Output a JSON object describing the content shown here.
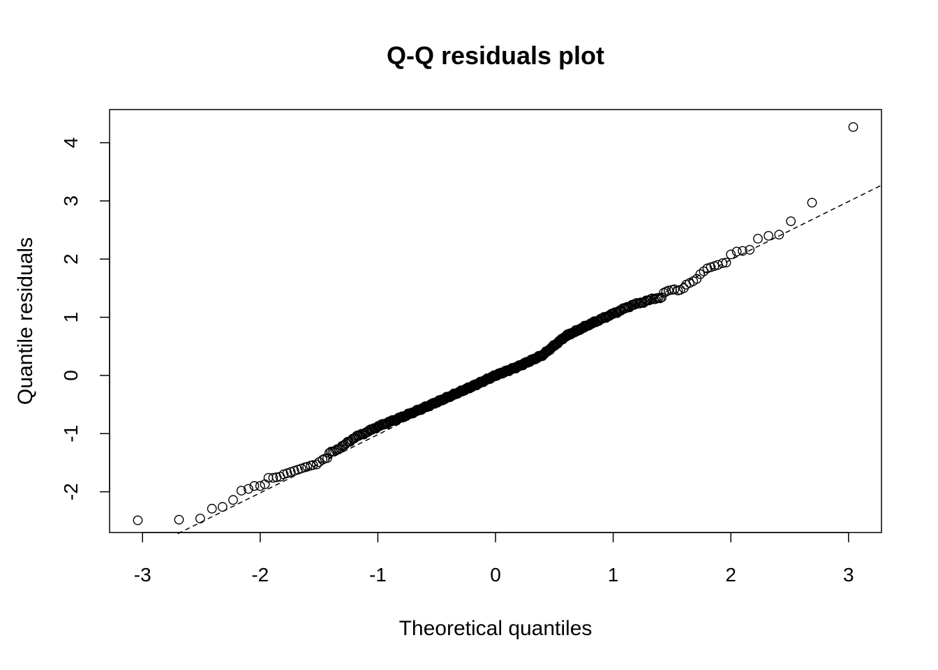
{
  "chart_data": {
    "type": "scatter",
    "title": "Q-Q residuals plot",
    "xlabel": "Theoretical quantiles",
    "ylabel": "Quantile residuals",
    "xlim": [
      -3.28,
      3.28
    ],
    "ylim": [
      -2.7,
      4.57
    ],
    "x_ticks": [
      -3,
      -2,
      -1,
      0,
      1,
      2,
      3
    ],
    "x_tick_labels": [
      "-3",
      "-2",
      "-1",
      "0",
      "1",
      "2",
      "3"
    ],
    "y_ticks": [
      -2,
      -1,
      0,
      1,
      2,
      3,
      4
    ],
    "y_tick_labels": [
      "-2",
      "-1",
      "0",
      "1",
      "2",
      "3",
      "4"
    ],
    "grid": false,
    "legend": "none",
    "marker": "open-circle",
    "reference_line": {
      "style": "dashed",
      "points": [
        [
          -2.7,
          -2.72
        ],
        [
          3.28,
          3.27
        ]
      ]
    },
    "tail_points": [
      [
        -3.04,
        -2.49
      ],
      [
        -2.69,
        -2.48
      ],
      [
        -2.51,
        -2.46
      ],
      [
        -2.41,
        -2.29
      ],
      [
        -2.32,
        -2.26
      ],
      [
        -2.23,
        -2.14
      ],
      [
        -2.16,
        -1.98
      ],
      [
        -2.1,
        -1.95
      ],
      [
        -2.05,
        -1.9
      ],
      [
        -2.0,
        -1.9
      ],
      [
        -1.96,
        -1.87
      ],
      [
        -1.93,
        -1.76
      ],
      [
        -1.89,
        -1.76
      ],
      [
        -1.86,
        -1.75
      ],
      [
        -1.83,
        -1.74
      ],
      [
        -1.8,
        -1.7
      ],
      [
        -1.77,
        -1.68
      ],
      [
        -1.74,
        -1.66
      ],
      [
        -1.71,
        -1.64
      ],
      [
        -1.68,
        -1.62
      ],
      [
        -1.65,
        -1.6
      ],
      [
        -1.62,
        -1.58
      ],
      [
        -1.6,
        -1.57
      ],
      [
        -1.57,
        -1.55
      ],
      [
        -1.55,
        -1.54
      ],
      [
        -1.52,
        -1.53
      ],
      [
        -1.5,
        -1.49
      ],
      [
        -1.47,
        -1.45
      ],
      [
        -1.45,
        -1.43
      ],
      [
        -1.43,
        -1.42
      ],
      [
        1.43,
        1.42
      ],
      [
        1.45,
        1.44
      ],
      [
        1.47,
        1.46
      ],
      [
        1.5,
        1.47
      ],
      [
        1.52,
        1.48
      ],
      [
        1.55,
        1.46
      ],
      [
        1.57,
        1.47
      ],
      [
        1.6,
        1.5
      ],
      [
        1.62,
        1.56
      ],
      [
        1.65,
        1.59
      ],
      [
        1.68,
        1.62
      ],
      [
        1.71,
        1.66
      ],
      [
        1.74,
        1.74
      ],
      [
        1.77,
        1.79
      ],
      [
        1.8,
        1.84
      ],
      [
        1.83,
        1.86
      ],
      [
        1.86,
        1.88
      ],
      [
        1.89,
        1.9
      ],
      [
        1.93,
        1.93
      ],
      [
        1.96,
        1.94
      ],
      [
        2.0,
        2.08
      ],
      [
        2.05,
        2.13
      ],
      [
        2.1,
        2.14
      ],
      [
        2.16,
        2.16
      ],
      [
        2.23,
        2.35
      ],
      [
        2.32,
        2.4
      ],
      [
        2.41,
        2.42
      ],
      [
        2.51,
        2.65
      ],
      [
        2.69,
        2.97
      ],
      [
        3.04,
        4.27
      ]
    ],
    "central_curve": [
      [
        -1.42,
        -1.35
      ],
      [
        -1.3,
        -1.22
      ],
      [
        -1.2,
        -1.07
      ],
      [
        -1.1,
        -0.98
      ],
      [
        -1.0,
        -0.88
      ],
      [
        -0.8,
        -0.72
      ],
      [
        -0.6,
        -0.55
      ],
      [
        -0.4,
        -0.37
      ],
      [
        -0.2,
        -0.19
      ],
      [
        0.0,
        0.0
      ],
      [
        0.2,
        0.16
      ],
      [
        0.4,
        0.35
      ],
      [
        0.6,
        0.68
      ],
      [
        0.8,
        0.88
      ],
      [
        1.0,
        1.06
      ],
      [
        1.15,
        1.2
      ],
      [
        1.25,
        1.26
      ],
      [
        1.35,
        1.32
      ],
      [
        1.42,
        1.35
      ]
    ],
    "central_point_count": 400
  }
}
